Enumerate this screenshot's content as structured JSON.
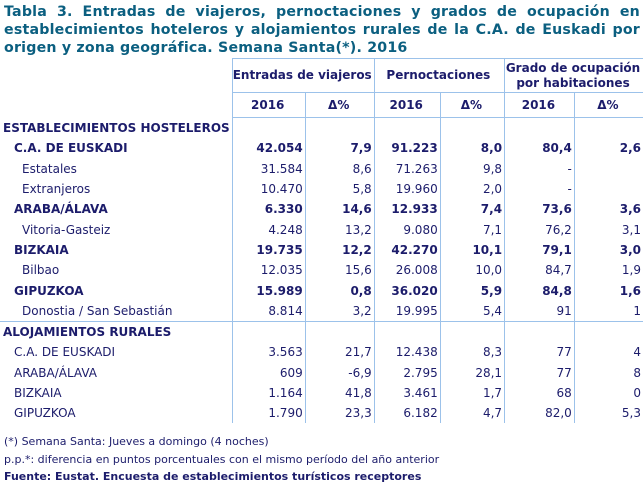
{
  "title": [
    "Tabla 3. Entradas de viajeros, pernoctaciones y grados de ocupación en",
    "establecimientos hoteleros y alojamientos rurales de la C.A. de Euskadi por",
    "origen y zona geográfica. Semana Santa(*). 2016"
  ],
  "headers": {
    "group1": "Entradas de viajeros",
    "group2": "Pernoctaciones",
    "group3a": "Grado de ocupación",
    "group3b": "por habitaciones",
    "year": "2016",
    "delta": "Δ%"
  },
  "sections": [
    {
      "label": "ESTABLECIMIENTOS HOSTELEROS",
      "rows": [
        {
          "label": "C.A. DE EUSKADI",
          "bold": true,
          "v": [
            "42.054",
            "7,9",
            "91.223",
            "8,0",
            "80,4",
            "2,6"
          ]
        },
        {
          "label": "Estatales",
          "bold": false,
          "v": [
            "31.584",
            "8,6",
            "71.263",
            "9,8",
            "-",
            ""
          ]
        },
        {
          "label": "Extranjeros",
          "bold": false,
          "v": [
            "10.470",
            "5,8",
            "19.960",
            "2,0",
            "-",
            ""
          ]
        },
        {
          "label": "ARABA/ÁLAVA",
          "bold": true,
          "v": [
            "6.330",
            "14,6",
            "12.933",
            "7,4",
            "73,6",
            "3,6"
          ]
        },
        {
          "label": "Vitoria-Gasteiz",
          "bold": false,
          "v": [
            "4.248",
            "13,2",
            "9.080",
            "7,1",
            "76,2",
            "3,1"
          ]
        },
        {
          "label": "BIZKAIA",
          "bold": true,
          "v": [
            "19.735",
            "12,2",
            "42.270",
            "10,1",
            "79,1",
            "3,0"
          ]
        },
        {
          "label": "Bilbao",
          "bold": false,
          "v": [
            "12.035",
            "15,6",
            "26.008",
            "10,0",
            "84,7",
            "1,9"
          ]
        },
        {
          "label": "GIPUZKOA",
          "bold": true,
          "v": [
            "15.989",
            "0,8",
            "36.020",
            "5,9",
            "84,8",
            "1,6"
          ]
        },
        {
          "label": "Donostia / San Sebastián",
          "bold": false,
          "v": [
            "8.814",
            "3,2",
            "19.995",
            "5,4",
            "91",
            "1"
          ]
        }
      ]
    },
    {
      "label": "ALOJAMIENTOS RURALES",
      "rows": [
        {
          "label": "C.A. DE EUSKADI",
          "bold": false,
          "v": [
            "3.563",
            "21,7",
            "12.438",
            "8,3",
            "77",
            "4"
          ]
        },
        {
          "label": "ARABA/ÁLAVA",
          "bold": false,
          "v": [
            "609",
            "-6,9",
            "2.795",
            "28,1",
            "77",
            "8"
          ]
        },
        {
          "label": "BIZKAIA",
          "bold": false,
          "v": [
            "1.164",
            "41,8",
            "3.461",
            "1,7",
            "68",
            "0"
          ]
        },
        {
          "label": "GIPUZKOA",
          "bold": false,
          "v": [
            "1.790",
            "23,3",
            "6.182",
            "4,7",
            "82,0",
            "5,3"
          ]
        }
      ]
    }
  ],
  "footnotes": [
    "(*) Semana Santa: Jueves a domingo (4 noches)",
    "p.p.*: diferencia en puntos porcentuales con el mismo período del año anterior",
    "Fuente: Eustat. Encuesta de establecimientos turísticos receptores"
  ]
}
